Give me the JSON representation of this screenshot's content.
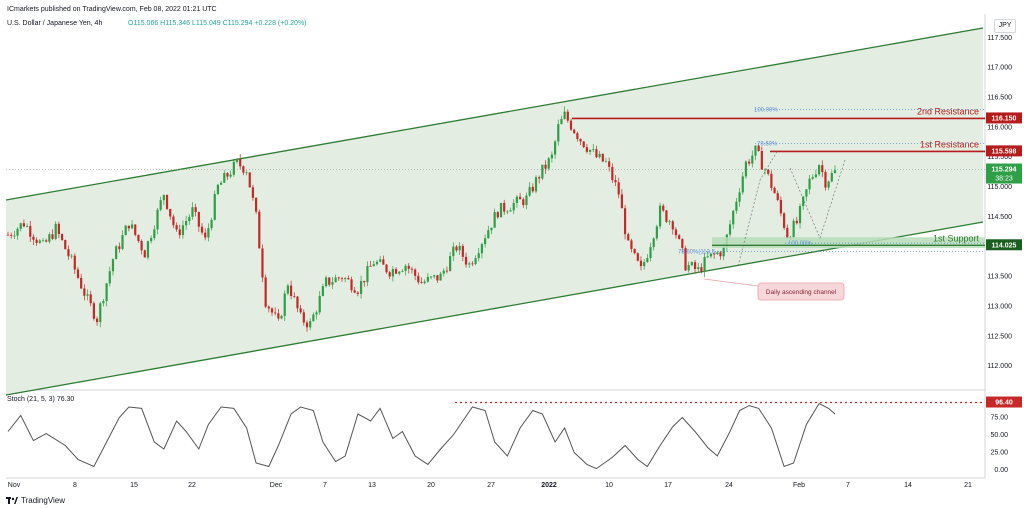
{
  "header": {
    "publisher_line": "ICmarkets published on TradingView.com, Feb 08, 2022 01:21 UTC",
    "symbol": "U.S. Dollar / Japanese Yen, 4h",
    "ohlc": "O115.066  H115.346  L115.049  C115.294  +0.228 (+0.20%)",
    "currency": "JPY"
  },
  "footer": {
    "brand": "TradingView"
  },
  "colors": {
    "channel": "#2e7d32",
    "channel_fill": "#e3ede2",
    "resistance": "#b71c1c",
    "support_zone": "#b7dcb8",
    "support_line": "#2e7d32",
    "fib": "#5b8fd8",
    "up": "#2e9e47",
    "down": "#c62828",
    "stoch": "#555555",
    "stoch_level": "#c62828",
    "callout_bg": "#f8d7da",
    "callout_border": "#e6a0a6",
    "callout_text": "#8a2530"
  },
  "annotations": {
    "resistance2": "2nd Resistance",
    "resistance1": "1st Resistance",
    "support1": "1st Support",
    "channel_note": "Daily ascending channel",
    "fib_top_100": "100.00%",
    "fib_top_786": "78.60%",
    "fib_bot_100": "100.00%",
    "fib_bot_786": "78.60%(113.5..."
  },
  "chart_data": [
    {
      "type": "candlestick",
      "title": "U.S. Dollar / Japanese Yen, 4h",
      "x_ticks": [
        "Nov",
        "8",
        "15",
        "22",
        "Dec",
        "7",
        "13",
        "20",
        "27",
        "2022",
        "10",
        "17",
        "24",
        "Feb",
        "7",
        "14",
        "21"
      ],
      "y_ticks": [
        "117.500",
        "117.000",
        "116.500",
        "116.000",
        "115.500",
        "115.000",
        "114.500",
        "114.000",
        "113.500",
        "113.000",
        "112.500",
        "112.000"
      ],
      "ylim": [
        111.6,
        117.9
      ],
      "last_price": "115.294",
      "countdown": "38:23",
      "levels": [
        {
          "name": "2nd Resistance",
          "value": 116.15,
          "label": "116.150"
        },
        {
          "name": "1st Resistance",
          "value": 115.598,
          "label": "115.598"
        },
        {
          "name": "1st Support",
          "value": 114.025,
          "label": "114.025"
        }
      ],
      "close_path": [
        [
          0,
          114.2
        ],
        [
          5,
          114.4
        ],
        [
          11,
          114.0
        ],
        [
          15,
          114.3
        ],
        [
          20,
          113.75
        ],
        [
          25,
          113.1
        ],
        [
          28,
          112.8
        ],
        [
          33,
          113.8
        ],
        [
          38,
          114.4
        ],
        [
          43,
          113.9
        ],
        [
          49,
          114.9
        ],
        [
          53,
          114.2
        ],
        [
          58,
          114.6
        ],
        [
          62,
          114.1
        ],
        [
          66,
          115.0
        ],
        [
          72,
          115.4
        ],
        [
          75,
          115.3
        ],
        [
          78,
          114.5
        ],
        [
          81,
          113.1
        ],
        [
          85,
          112.7
        ],
        [
          88,
          113.4
        ],
        [
          92,
          112.8
        ],
        [
          95,
          112.7
        ],
        [
          100,
          113.4
        ],
        [
          105,
          113.5
        ],
        [
          110,
          113.3
        ],
        [
          115,
          113.75
        ],
        [
          120,
          113.6
        ],
        [
          125,
          113.7
        ],
        [
          130,
          113.4
        ],
        [
          136,
          113.5
        ],
        [
          141,
          114.0
        ],
        [
          145,
          113.7
        ],
        [
          150,
          114.2
        ],
        [
          154,
          114.6
        ],
        [
          158,
          114.7
        ],
        [
          163,
          114.8
        ],
        [
          167,
          115.2
        ],
        [
          171,
          115.5
        ],
        [
          173,
          116.0
        ],
        [
          175,
          116.2
        ],
        [
          180,
          115.8
        ],
        [
          185,
          115.5
        ],
        [
          188,
          115.4
        ],
        [
          192,
          114.9
        ],
        [
          195,
          114.0
        ],
        [
          199,
          113.6
        ],
        [
          201,
          113.9
        ],
        [
          205,
          114.6
        ],
        [
          209,
          114.4
        ],
        [
          213,
          113.7
        ],
        [
          217,
          113.6
        ],
        [
          220,
          113.8
        ],
        [
          225,
          113.95
        ],
        [
          229,
          114.8
        ],
        [
          232,
          115.4
        ],
        [
          235,
          115.6
        ],
        [
          238,
          115.3
        ],
        [
          241,
          114.9
        ],
        [
          245,
          114.2
        ],
        [
          248,
          114.4
        ],
        [
          252,
          115.1
        ],
        [
          255,
          115.4
        ],
        [
          257,
          115.1
        ],
        [
          260,
          115.25
        ]
      ]
    },
    {
      "type": "line",
      "title": "Stoch (21, 5, 3)",
      "header_value": "76.30",
      "y_ticks": [
        "75.00",
        "50.00",
        "25.00",
        "0.00"
      ],
      "ylim": [
        0,
        100
      ],
      "level": {
        "value": 96.4,
        "label": "96.40"
      },
      "points": [
        [
          0,
          55
        ],
        [
          4,
          78
        ],
        [
          8,
          42
        ],
        [
          12,
          52
        ],
        [
          18,
          35
        ],
        [
          22,
          15
        ],
        [
          27,
          5
        ],
        [
          31,
          40
        ],
        [
          35,
          75
        ],
        [
          38,
          90
        ],
        [
          42,
          88
        ],
        [
          46,
          40
        ],
        [
          49,
          30
        ],
        [
          53,
          70
        ],
        [
          56,
          55
        ],
        [
          60,
          30
        ],
        [
          63,
          65
        ],
        [
          67,
          90
        ],
        [
          71,
          88
        ],
        [
          75,
          60
        ],
        [
          78,
          10
        ],
        [
          82,
          5
        ],
        [
          85,
          35
        ],
        [
          89,
          80
        ],
        [
          92,
          90
        ],
        [
          96,
          85
        ],
        [
          99,
          40
        ],
        [
          103,
          12
        ],
        [
          106,
          20
        ],
        [
          110,
          80
        ],
        [
          114,
          70
        ],
        [
          117,
          88
        ],
        [
          121,
          45
        ],
        [
          124,
          55
        ],
        [
          128,
          20
        ],
        [
          132,
          8
        ],
        [
          136,
          30
        ],
        [
          140,
          50
        ],
        [
          143,
          70
        ],
        [
          146,
          90
        ],
        [
          150,
          85
        ],
        [
          153,
          40
        ],
        [
          157,
          20
        ],
        [
          161,
          60
        ],
        [
          165,
          85
        ],
        [
          168,
          80
        ],
        [
          172,
          40
        ],
        [
          175,
          60
        ],
        [
          178,
          25
        ],
        [
          182,
          8
        ],
        [
          185,
          2
        ],
        [
          190,
          18
        ],
        [
          194,
          35
        ],
        [
          198,
          15
        ],
        [
          201,
          5
        ],
        [
          205,
          35
        ],
        [
          209,
          62
        ],
        [
          212,
          75
        ],
        [
          216,
          55
        ],
        [
          220,
          32
        ],
        [
          223,
          20
        ],
        [
          227,
          55
        ],
        [
          230,
          85
        ],
        [
          233,
          92
        ],
        [
          236,
          88
        ],
        [
          240,
          60
        ],
        [
          244,
          5
        ],
        [
          247,
          10
        ],
        [
          251,
          65
        ],
        [
          255,
          95
        ],
        [
          258,
          88
        ],
        [
          260,
          80
        ]
      ]
    }
  ]
}
